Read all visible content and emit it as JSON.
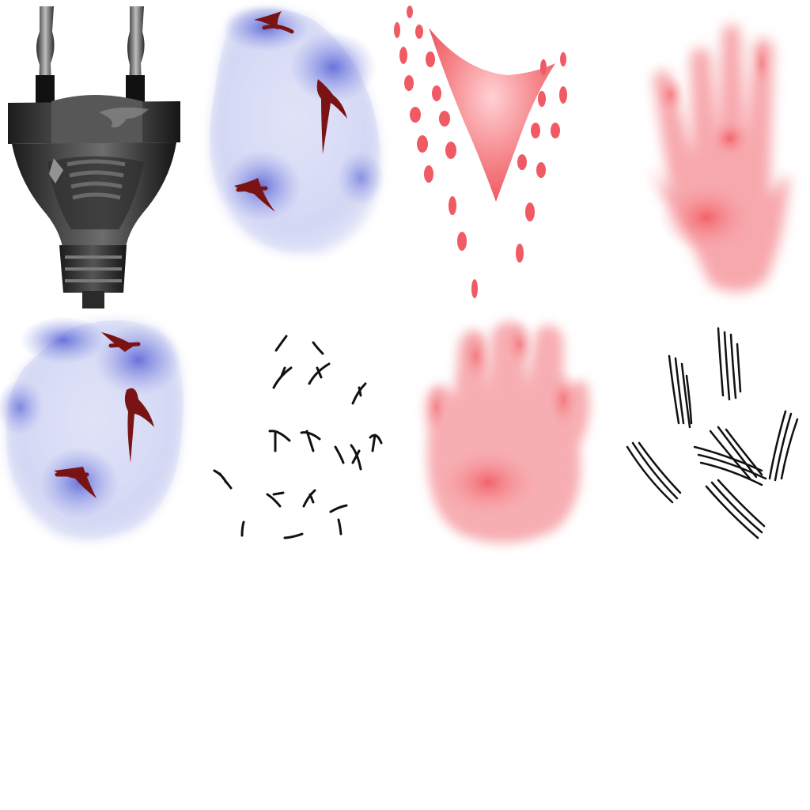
{
  "sheet": {
    "background": "#ffffff",
    "sprites": [
      {
        "id": "plug",
        "subject": "electric-plug-icon",
        "colors": {
          "body": "#2f2f2f",
          "highlight": "#9a9a9a",
          "metal": "#cfcfcf"
        }
      },
      {
        "id": "blue-pad-tall",
        "subject": "blue-glow-pad-icon",
        "colors": {
          "glow": "#7b86e0",
          "mark": "#7a1414"
        }
      },
      {
        "id": "red-v-mark",
        "subject": "red-v-splash-icon",
        "colors": {
          "fill": "#f06a6e",
          "dots": "#f05a64"
        }
      },
      {
        "id": "red-handprint-open",
        "subject": "red-handprint-icon",
        "colors": {
          "fill": "#f25b63"
        }
      },
      {
        "id": "blue-pad-round",
        "subject": "blue-glow-pad-icon",
        "colors": {
          "glow": "#7b86e0",
          "mark": "#7a1414"
        }
      },
      {
        "id": "small-nicks",
        "subject": "scattered-nicks-icon",
        "colors": {
          "mark": "#111111"
        }
      },
      {
        "id": "red-handprint-paw",
        "subject": "red-paw-print-icon",
        "colors": {
          "fill": "#f25b63"
        }
      },
      {
        "id": "claw-scratches",
        "subject": "claw-scratch-icon",
        "colors": {
          "mark": "#111111"
        }
      }
    ]
  }
}
